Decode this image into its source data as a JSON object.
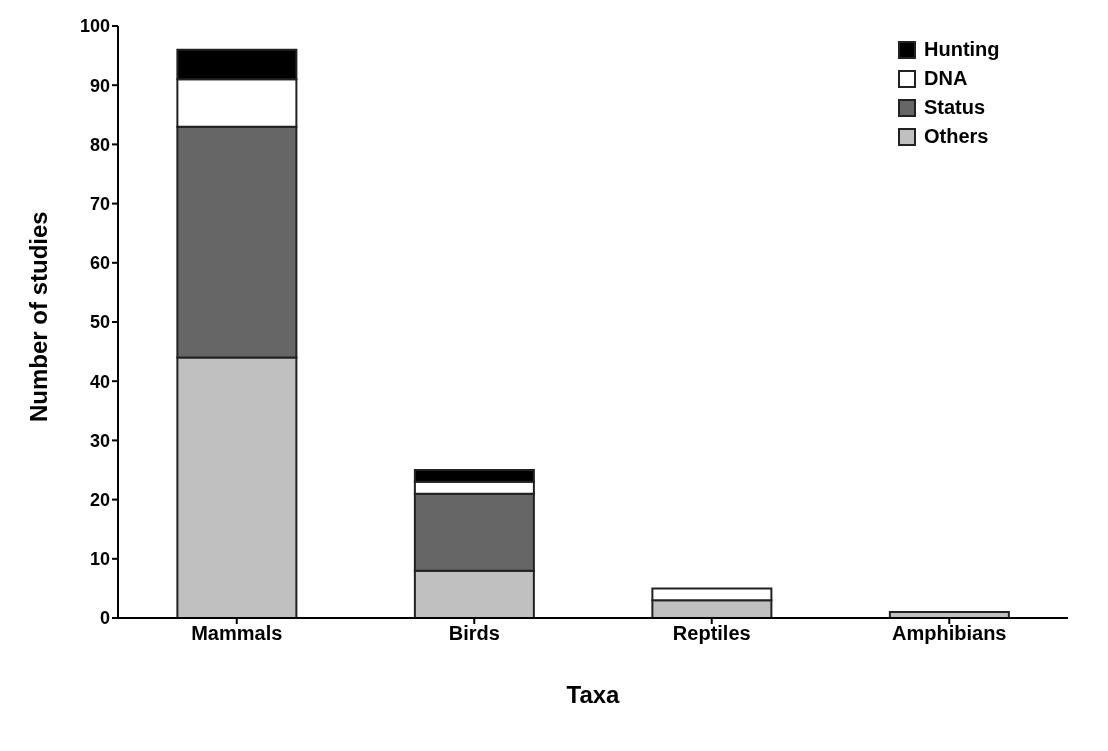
{
  "chart_data": {
    "type": "bar",
    "stacked": true,
    "xlabel": "Taxa",
    "ylabel": "Number of studies",
    "categories": [
      "Mammals",
      "Birds",
      "Reptiles",
      "Amphibians"
    ],
    "series": [
      {
        "name": "Others",
        "color": "#c0c0c0",
        "values": [
          44,
          8,
          3,
          1
        ]
      },
      {
        "name": "Status",
        "color": "#666666",
        "values": [
          39,
          13,
          0,
          0
        ]
      },
      {
        "name": "DNA",
        "color": "#ffffff",
        "values": [
          8,
          2,
          2,
          0
        ]
      },
      {
        "name": "Hunting",
        "color": "#000000",
        "values": [
          5,
          2,
          0,
          0
        ]
      }
    ],
    "ylim": [
      0,
      100
    ],
    "yticks": [
      0,
      10,
      20,
      30,
      40,
      50,
      60,
      70,
      80,
      90,
      100
    ],
    "grid": false,
    "legend": "top right"
  }
}
